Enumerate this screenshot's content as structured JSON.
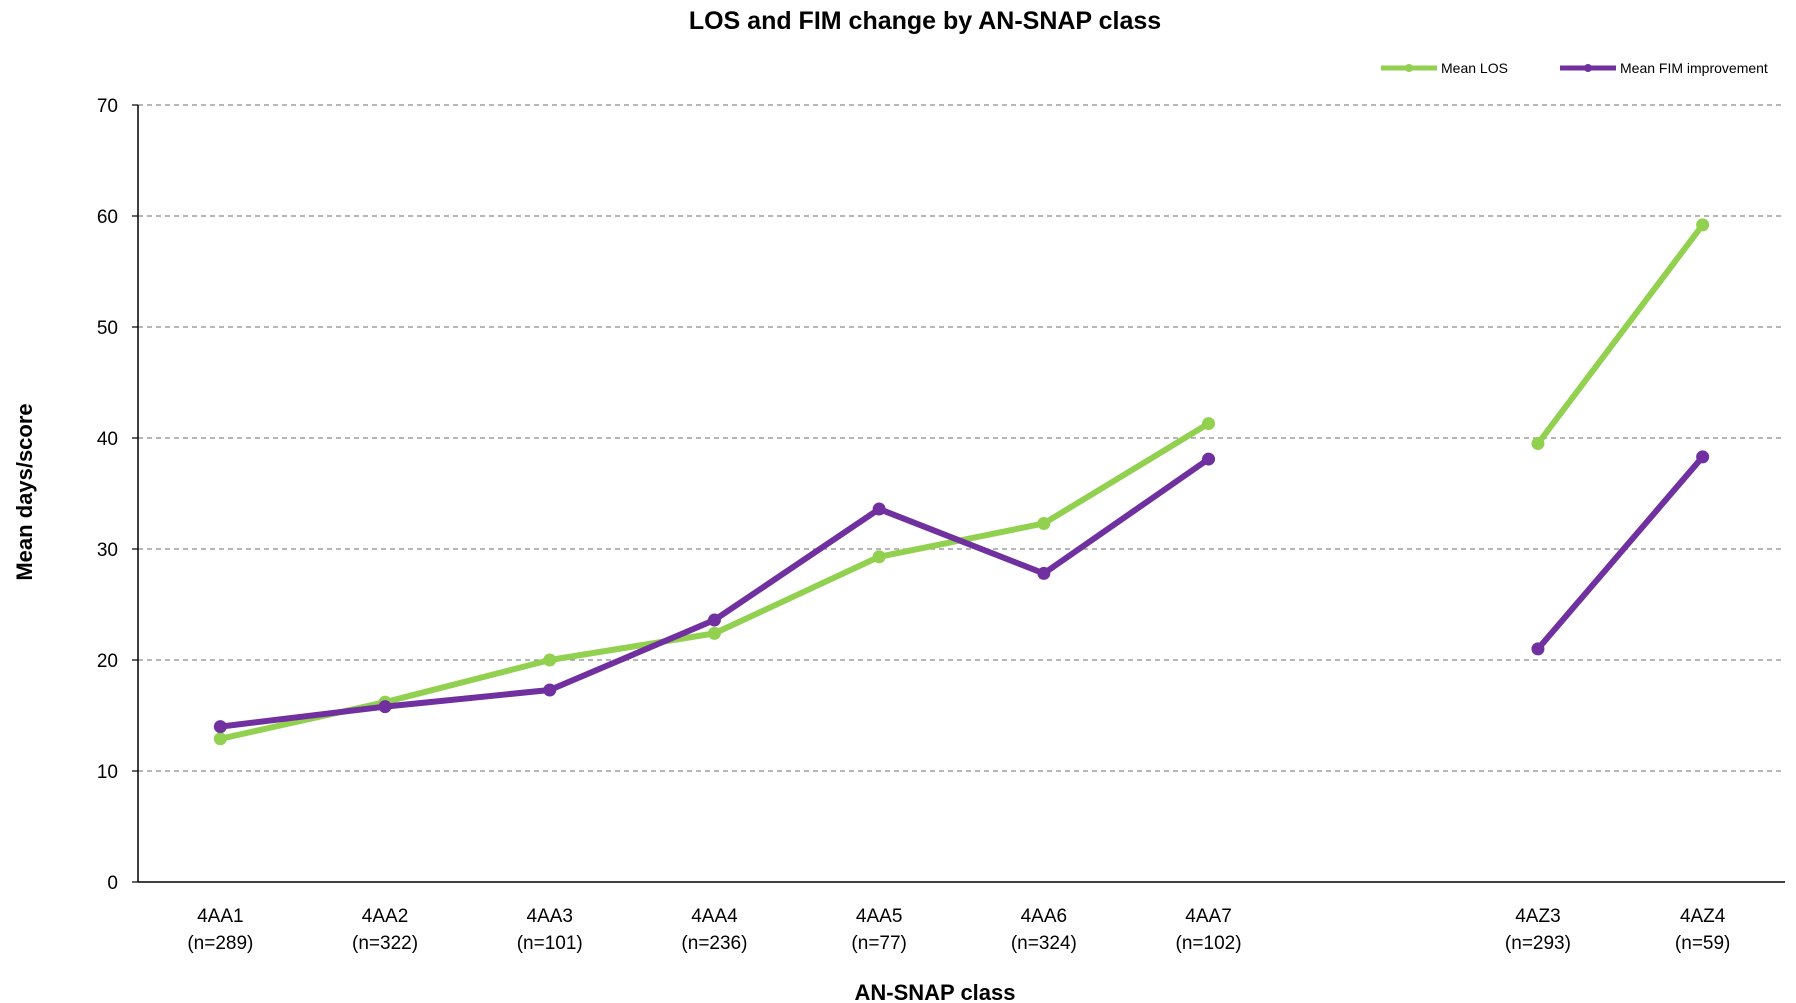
{
  "chart_data": {
    "type": "line",
    "title": "LOS and FIM change by AN-SNAP  class",
    "xlabel": "AN-SNAP class",
    "ylabel": "Mean days/score",
    "ylim": [
      0,
      70
    ],
    "yticks": [
      0,
      10,
      20,
      30,
      40,
      50,
      60,
      70
    ],
    "grid": "horizontal-dashed",
    "legend_position": "top-right",
    "categories": [
      {
        "code": "4AA1",
        "n": "(n=289)"
      },
      {
        "code": "4AA2",
        "n": "(n=322)"
      },
      {
        "code": "4AA3",
        "n": "(n=101)"
      },
      {
        "code": "4AA4",
        "n": "(n=236)"
      },
      {
        "code": "4AA5",
        "n": "(n=77)"
      },
      {
        "code": "4AA6",
        "n": "(n=324)"
      },
      {
        "code": "4AA7",
        "n": "(n=102)"
      },
      {
        "code": "",
        "n": ""
      },
      {
        "code": "4AZ3",
        "n": "(n=293)"
      },
      {
        "code": "4AZ4",
        "n": "(n=59)"
      }
    ],
    "series": [
      {
        "name": "Mean LOS",
        "color": "#92d050",
        "values": [
          12.9,
          16.2,
          20.0,
          22.4,
          29.3,
          32.3,
          41.3,
          null,
          39.5,
          59.2
        ]
      },
      {
        "name": "Mean FIM improvement",
        "color": "#7030a0",
        "values": [
          14.0,
          15.8,
          17.3,
          23.6,
          33.6,
          27.8,
          38.1,
          null,
          21.0,
          38.3
        ]
      }
    ]
  }
}
